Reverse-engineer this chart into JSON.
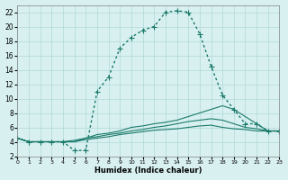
{
  "xlabel": "Humidex (Indice chaleur)",
  "bg_color": "#d8f0f0",
  "grid_color": "#b0d8d8",
  "line_color": "#1a7a6a",
  "xlim": [
    0,
    23
  ],
  "ylim": [
    2,
    23
  ],
  "yticks": [
    2,
    4,
    6,
    8,
    10,
    12,
    14,
    16,
    18,
    20,
    22
  ],
  "xticks": [
    0,
    1,
    2,
    3,
    4,
    5,
    6,
    7,
    8,
    9,
    10,
    11,
    12,
    13,
    14,
    15,
    16,
    17,
    18,
    19,
    20,
    21,
    22,
    23
  ],
  "line1_x": [
    0,
    1,
    2,
    3,
    4,
    5,
    6,
    7,
    8,
    9,
    10,
    11,
    12,
    13,
    14,
    15,
    16,
    17,
    18,
    19,
    20,
    21,
    22,
    23
  ],
  "line1_y": [
    4.5,
    4.0,
    4.0,
    4.0,
    4.0,
    2.8,
    2.8,
    11.0,
    13.0,
    17.0,
    18.5,
    19.5,
    20.0,
    22.0,
    22.2,
    22.0,
    19.0,
    14.5,
    10.5,
    8.5,
    6.5,
    6.5,
    5.5,
    5.5
  ],
  "line2_x": [
    0,
    1,
    2,
    3,
    4,
    5,
    6,
    7,
    8,
    9,
    10,
    11,
    12,
    13,
    14,
    15,
    16,
    17,
    18,
    19,
    20,
    21,
    22,
    23
  ],
  "line2_y": [
    4.5,
    4.0,
    4.0,
    4.0,
    4.0,
    4.0,
    4.5,
    5.0,
    5.2,
    5.5,
    6.0,
    6.2,
    6.5,
    6.7,
    7.0,
    7.5,
    8.0,
    8.5,
    9.0,
    8.5,
    7.5,
    6.5,
    5.5,
    5.5
  ],
  "line3_x": [
    0,
    1,
    2,
    3,
    4,
    5,
    6,
    7,
    8,
    9,
    10,
    11,
    12,
    13,
    14,
    15,
    16,
    17,
    18,
    19,
    20,
    21,
    22,
    23
  ],
  "line3_y": [
    4.5,
    4.0,
    4.0,
    4.0,
    4.0,
    4.2,
    4.5,
    4.7,
    5.0,
    5.2,
    5.5,
    5.7,
    6.0,
    6.2,
    6.5,
    6.8,
    7.0,
    7.2,
    7.0,
    6.5,
    6.0,
    5.8,
    5.5,
    5.5
  ],
  "line4_x": [
    0,
    1,
    2,
    3,
    4,
    5,
    6,
    7,
    8,
    9,
    10,
    11,
    12,
    13,
    14,
    15,
    16,
    17,
    18,
    19,
    20,
    21,
    22,
    23
  ],
  "line4_y": [
    4.5,
    4.0,
    4.0,
    4.0,
    4.0,
    4.0,
    4.3,
    4.5,
    4.7,
    5.0,
    5.2,
    5.4,
    5.6,
    5.7,
    5.8,
    6.0,
    6.2,
    6.3,
    6.0,
    5.8,
    5.7,
    5.5,
    5.5,
    5.5
  ]
}
